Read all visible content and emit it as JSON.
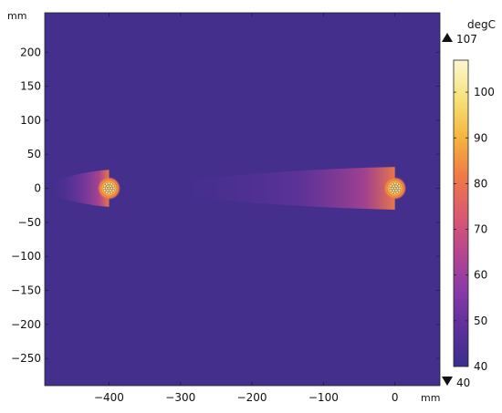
{
  "chart_data": {
    "type": "heatmap",
    "title": "",
    "xlabel": "mm",
    "ylabel": "mm",
    "xlim": [
      -490,
      63
    ],
    "ylim": [
      -290,
      258
    ],
    "x_ticks": [
      -400,
      -300,
      -200,
      -100,
      0
    ],
    "y_ticks": [
      200,
      150,
      100,
      50,
      0,
      -50,
      -100,
      -150,
      -200,
      -250
    ],
    "colorbar": {
      "unit": "degC",
      "min": 40,
      "max": 107,
      "min_label": "40",
      "max_label": "107",
      "ticks": [
        100,
        90,
        80,
        70,
        60,
        50,
        40
      ],
      "colormap": [
        "#3a2e8f",
        "#5c2f9b",
        "#8a3aa8",
        "#b8468f",
        "#de5a6e",
        "#f07b45",
        "#f6b63d",
        "#f7e27a",
        "#fbf7d0"
      ]
    },
    "field": {
      "background_value": 45,
      "hot_spots": [
        {
          "x": -400,
          "y": 0,
          "peak": 107
        },
        {
          "x": 0,
          "y": 0,
          "peak": 107
        }
      ]
    }
  }
}
